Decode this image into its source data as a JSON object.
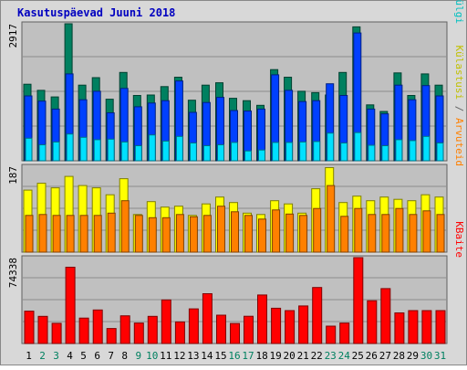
{
  "chart_data": {
    "type": "bar",
    "title": "Kasutuspäevad Juuni 2018",
    "categories": [
      "1",
      "2",
      "3",
      "4",
      "5",
      "6",
      "7",
      "8",
      "9",
      "10",
      "11",
      "12",
      "13",
      "14",
      "15",
      "16",
      "17",
      "18",
      "19",
      "20",
      "21",
      "22",
      "23",
      "24",
      "25",
      "26",
      "27",
      "28",
      "29",
      "30",
      "31"
    ],
    "weekend_categories": [
      "2",
      "3",
      "9",
      "10",
      "16",
      "17",
      "23",
      "24",
      "30",
      "31"
    ],
    "panels": [
      {
        "id": "visits",
        "ymax_label": "2917",
        "ymax": 2917,
        "right_label": {
          "parts": [
            {
              "text": "Pöördumisi",
              "color": "#008040"
            },
            {
              "text": " / ",
              "color": "#666666"
            },
            {
              "text": "Faile",
              "color": "#0000ff"
            },
            {
              "text": " / ",
              "color": "#666666"
            },
            {
              "text": "Lehekülgi",
              "color": "#00c0c0"
            }
          ]
        },
        "series": [
          {
            "name": "Pöördumisi",
            "color": "#008060",
            "values": [
              1630,
              1500,
              1360,
              2917,
              1610,
              1770,
              1310,
              1880,
              1390,
              1400,
              1580,
              1780,
              1290,
              1610,
              1660,
              1330,
              1280,
              1180,
              1940,
              1780,
              1480,
              1450,
              1400,
              1880,
              2850,
              1190,
              1050,
              1870,
              1390,
              1850,
              1610
            ]
          },
          {
            "name": "Faile",
            "color": "#0040ff",
            "values": [
              1380,
              1270,
              1100,
              1850,
              1300,
              1480,
              1020,
              1540,
              1150,
              1230,
              1280,
              1700,
              1030,
              1240,
              1350,
              1070,
              1060,
              1100,
              1830,
              1500,
              1260,
              1280,
              1640,
              1390,
              2720,
              1100,
              1000,
              1610,
              1300,
              1600,
              1380
            ]
          },
          {
            "name": "Lehekülgi",
            "color": "#00e0ff",
            "values": [
              480,
              340,
              400,
              570,
              500,
              450,
              460,
              400,
              320,
              550,
              420,
              520,
              380,
              320,
              340,
              390,
              210,
              230,
              390,
              390,
              400,
              410,
              590,
              380,
              600,
              330,
              320,
              450,
              430,
              520,
              380
            ]
          }
        ]
      },
      {
        "id": "visitors",
        "ymax_label": "187",
        "ymax": 187,
        "right_label": {
          "parts": [
            {
              "text": "Külastusi",
              "color": "#c0c000"
            },
            {
              "text": " / ",
              "color": "#666666"
            },
            {
              "text": "Arvuteid",
              "color": "#ff8000"
            }
          ]
        },
        "series": [
          {
            "name": "Külastusi",
            "color": "#ffff00",
            "values": [
              135,
              150,
              140,
              165,
              145,
              140,
              125,
              160,
              82,
              110,
              98,
              100,
              80,
              105,
              120,
              108,
              85,
              82,
              112,
              105,
              85,
              138,
              184,
              108,
              122,
              112,
              120,
              115,
              112,
              125,
              120
            ]
          },
          {
            "name": "Arvuteid",
            "color": "#ff8000",
            "values": [
              80,
              82,
              80,
              80,
              80,
              80,
              85,
              112,
              80,
              75,
              75,
              82,
              77,
              80,
              100,
              88,
              80,
              72,
              92,
              83,
              80,
              95,
              145,
              78,
              95,
              82,
              82,
              95,
              82,
              90,
              82
            ]
          }
        ]
      },
      {
        "id": "kbytes",
        "ymax_label": "74338",
        "ymax": 74338,
        "right_label": {
          "parts": [
            {
              "text": "KBaite",
              "color": "#ff0000"
            }
          ]
        },
        "series": [
          {
            "name": "KBaite",
            "color": "#ff0000",
            "values": [
              28000,
              23500,
              17500,
              66000,
              22000,
              29000,
              13000,
              24000,
              17700,
              23500,
              37700,
              18700,
              30000,
              43100,
              24500,
              17300,
              23600,
              42000,
              30500,
              28500,
              32500,
              48500,
              15000,
              17700,
              74338,
              37000,
              47500,
              26500,
              28500,
              28500,
              28500
            ]
          }
        ]
      }
    ]
  }
}
